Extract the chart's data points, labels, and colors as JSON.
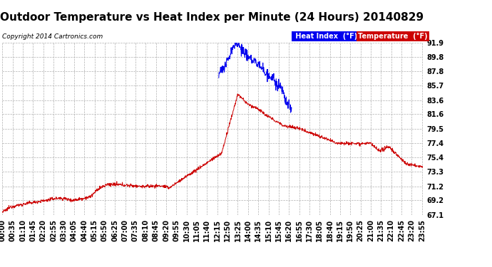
{
  "title": "Outdoor Temperature vs Heat Index per Minute (24 Hours) 20140829",
  "copyright_text": "Copyright 2014 Cartronics.com",
  "ylim": [
    67.1,
    91.9
  ],
  "yticks": [
    67.1,
    69.2,
    71.2,
    73.3,
    75.4,
    77.4,
    79.5,
    81.6,
    83.6,
    85.7,
    87.8,
    89.8,
    91.9
  ],
  "background_color": "#ffffff",
  "plot_bg_color": "#ffffff",
  "grid_color": "#b0b0b0",
  "temp_color": "#cc0000",
  "heat_color": "#0000ee",
  "legend_heat_bg": "#0000ee",
  "legend_temp_bg": "#cc0000",
  "title_fontsize": 11,
  "tick_fontsize": 7,
  "xtick_interval": 35
}
